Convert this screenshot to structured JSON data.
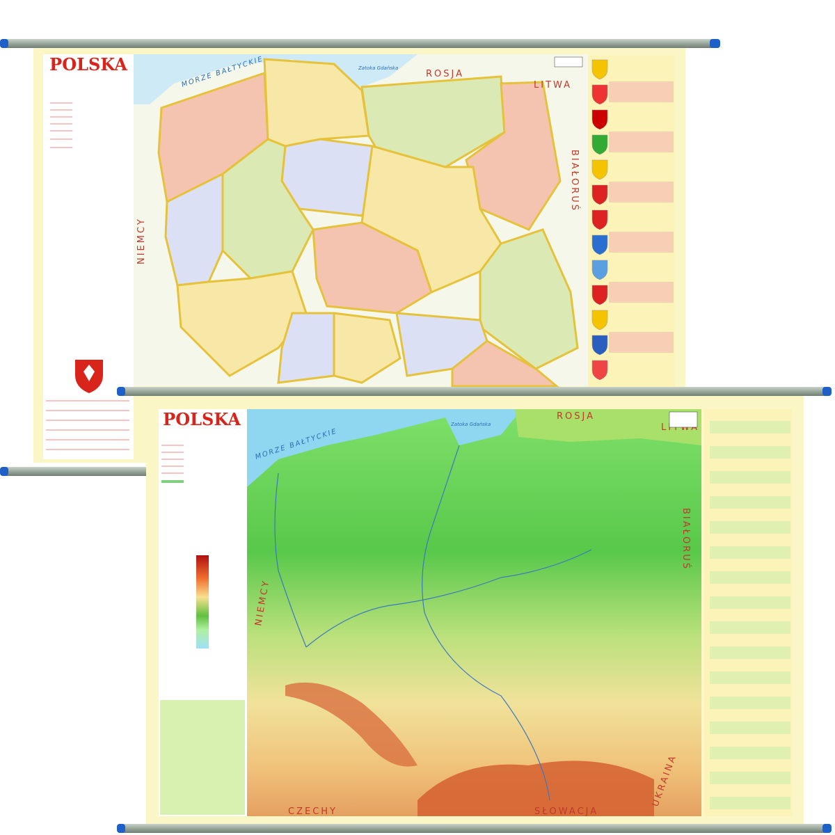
{
  "maps": [
    {
      "title": "POLSKA",
      "labels": {
        "sea": "MORZE BAŁTYCKIE",
        "bay": "Zatoka Gdańska",
        "north": "ROSJA",
        "northeast": "LITWA",
        "east": "BIAŁORUŚ",
        "west": "NIEMCY"
      }
    },
    {
      "title": "POLSKA",
      "labels": {
        "sea": "MORZE BAŁTYCKIE",
        "bay": "Zatoka Gdańska",
        "north": "ROSJA",
        "northeast": "LITWA",
        "east": "BIAŁORUŚ",
        "west": "NIEMCY",
        "southwest": "CZECHY",
        "south": "SŁOWACJA",
        "southeast": "UKRAINA"
      }
    }
  ]
}
